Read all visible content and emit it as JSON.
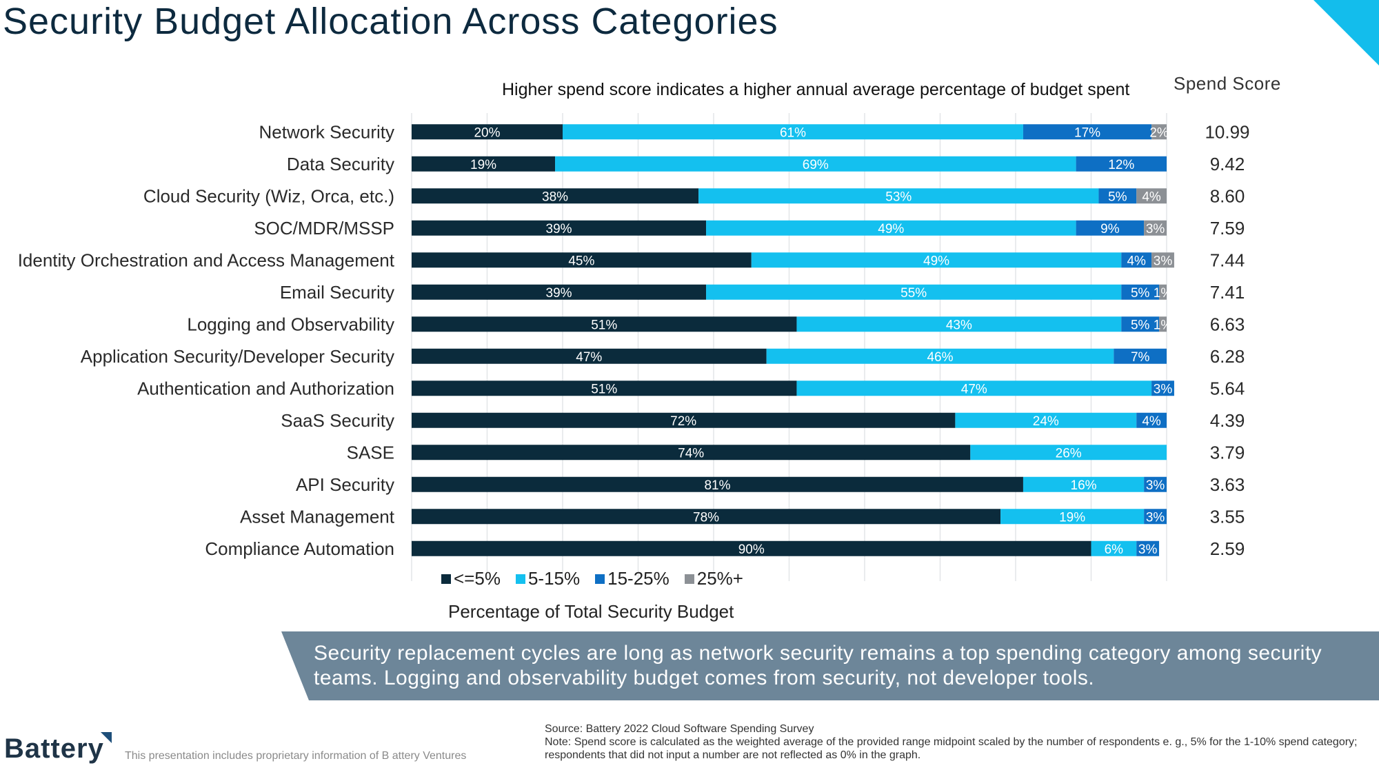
{
  "page": {
    "title": "Security Budget Allocation Across Categories",
    "subtitle": "Higher spend score indicates a higher annual average percentage of budget spent",
    "score_header": "Spend Score",
    "banner_text": "Security replacement cycles are long as network security remains a top spending category among security teams. Logging and observability budget comes from security, not developer tools.",
    "logo_text": "Battery",
    "proprietary_note": "This presentation includes proprietary information of B attery Ventures",
    "source_line": "Source: Battery 2022 Cloud Software Spending Survey",
    "note_line": "Note: Spend score is calculated as the weighted average of the provided range midpoint scaled by the number of respondents e. g., 5% for the 1-10% spend category; respondents that did not input a number are not reflected as 0% in the graph."
  },
  "colors": {
    "le5": "#0b2b3c",
    "5to15": "#14c0ef",
    "15to25": "#0e6fc4",
    "25plus": "#8c9095",
    "accent": "#13bdec",
    "banner": "#6d8699"
  },
  "chart_data": {
    "type": "bar",
    "orientation": "horizontal-stacked-100",
    "title": "Security Budget Allocation Across Categories",
    "xlabel": "Percentage of Total Security Budget",
    "ylabel": "",
    "xlim": [
      0,
      100
    ],
    "grid": true,
    "legend_position": "bottom-left",
    "categories": [
      "Network Security",
      "Data Security",
      "Cloud Security (Wiz, Orca, etc.)",
      "SOC/MDR/MSSP",
      "Identity Orchestration and Access Management",
      "Email Security",
      "Logging and Observability",
      "Application Security/Developer Security",
      "Authentication and Authorization",
      "SaaS Security",
      "SASE",
      "API Security",
      "Asset Management",
      "Compliance Automation"
    ],
    "series": [
      {
        "name": "<=5%",
        "color_key": "le5",
        "values": [
          20,
          19,
          38,
          39,
          45,
          39,
          51,
          47,
          51,
          72,
          74,
          81,
          78,
          90
        ]
      },
      {
        "name": "5-15%",
        "color_key": "5to15",
        "values": [
          61,
          69,
          53,
          49,
          49,
          55,
          43,
          46,
          47,
          24,
          26,
          16,
          19,
          6
        ]
      },
      {
        "name": "15-25%",
        "color_key": "15to25",
        "values": [
          17,
          12,
          5,
          9,
          4,
          5,
          5,
          7,
          3,
          4,
          0,
          3,
          3,
          3
        ]
      },
      {
        "name": "25%+",
        "color_key": "25plus",
        "values": [
          2,
          0,
          4,
          3,
          3,
          1,
          1,
          0,
          0,
          0,
          0,
          0,
          0,
          0
        ]
      }
    ],
    "spend_scores": [
      "10.99",
      "9.42",
      "8.60",
      "7.59",
      "7.44",
      "7.41",
      "6.63",
      "6.28",
      "5.64",
      "4.39",
      "3.79",
      "3.63",
      "3.55",
      "2.59"
    ]
  }
}
